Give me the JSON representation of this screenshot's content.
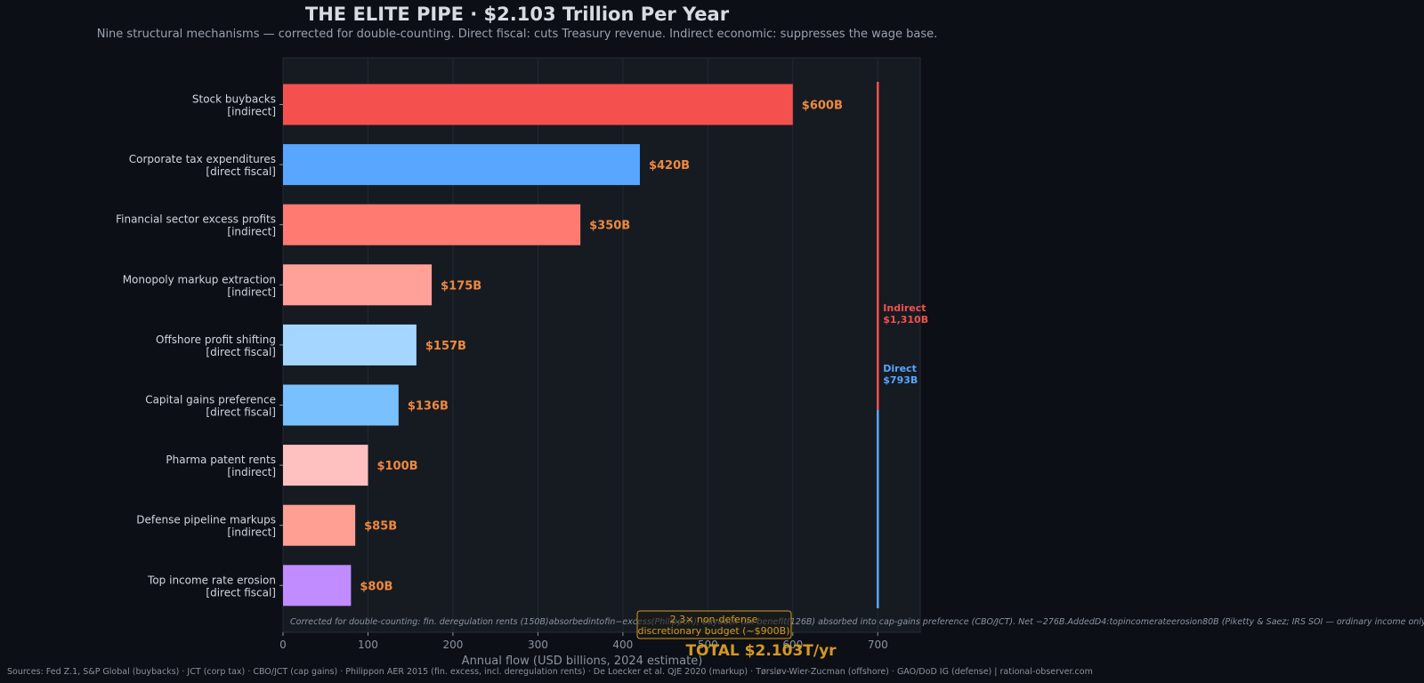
{
  "chart_data": {
    "type": "bar",
    "orientation": "horizontal",
    "title": "THE ELITE PIPE  ·  $2.103 Trillion Per Year",
    "subtitle": "Nine structural mechanisms — corrected for double-counting. Direct fiscal: cuts Treasury revenue. Indirect economic: suppresses the wage base.",
    "xlabel": "Annual flow  (USD billions, 2024 estimate)",
    "xlim": [
      0,
      750
    ],
    "xticks": [
      0,
      100,
      200,
      300,
      400,
      500,
      600,
      700
    ],
    "grid": "vertical",
    "categories": [
      {
        "name": "Stock buybacks",
        "kind": "[indirect]",
        "value": 600,
        "label": "$600B",
        "color": "#f4514e"
      },
      {
        "name": "Corporate tax expenditures",
        "kind": "[direct fiscal]",
        "value": 420,
        "label": "$420B",
        "color": "#58a6ff"
      },
      {
        "name": "Financial sector excess profits",
        "kind": "[indirect]",
        "value": 350,
        "label": "$350B",
        "color": "#ff7b72"
      },
      {
        "name": "Monopoly markup extraction",
        "kind": "[indirect]",
        "value": 175,
        "label": "$175B",
        "color": "#ffa198"
      },
      {
        "name": "Offshore profit shifting",
        "kind": "[direct fiscal]",
        "value": 157,
        "label": "$157B",
        "color": "#a5d6ff"
      },
      {
        "name": "Capital gains preference",
        "kind": "[direct fiscal]",
        "value": 136,
        "label": "$136B",
        "color": "#79c0ff"
      },
      {
        "name": "Pharma patent rents",
        "kind": "[indirect]",
        "value": 100,
        "label": "$100B",
        "color": "#ffc1c0"
      },
      {
        "name": "Defense pipeline markups",
        "kind": "[indirect]",
        "value": 85,
        "label": "$85B",
        "color": "#ff9f94"
      },
      {
        "name": "Top income rate erosion",
        "kind": "[direct fiscal]",
        "value": 80,
        "label": "$80B",
        "color": "#c08cff"
      }
    ],
    "stack_bar": {
      "at_x": 700,
      "segments": [
        {
          "name": "Indirect",
          "value_label": "$1,310B",
          "value": 1310,
          "color": "#f4514e"
        },
        {
          "name": "Direct",
          "value_label": "$793B",
          "value": 793,
          "color": "#58a6ff"
        }
      ]
    },
    "total_label": "TOTAL  $2.103T/yr",
    "callout": "2.3× non-defense\ndiscretionary budget (~$900B)",
    "footnote": "Corrected for double-counting: fin. deregulation rents (150B)absorbedintofin−excess(Philippon); buyback tax benefit(126B) absorbed into cap-gains preference (CBO/JCT). Net −276B.AddedD4:topincomerateerosion80B (Piketty & Saez; IRS SOI — ordinary income only, not cap gains)."
  },
  "colors": {
    "background": "#0c0f16",
    "plot_background": "#161b22",
    "value_label": "#f0883e",
    "total": "#d29922"
  },
  "sources": "Sources: Fed Z.1, S&P Global (buybacks) · JCT (corp tax) · CBO/JCT (cap gains) · Philippon AER 2015 (fin. excess, incl. deregulation rents) · De Loecker et al. QJE 2020 (markup) · Tørsløv-Wier-Zucman (offshore) · GAO/DoD IG (defense)  |  rational-observer.com"
}
